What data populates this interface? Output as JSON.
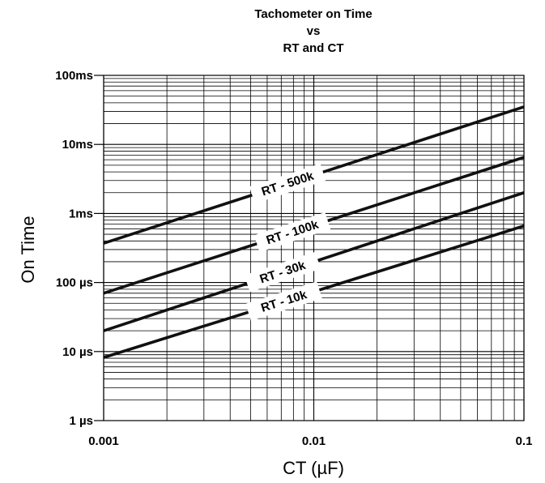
{
  "chart_data": {
    "type": "line",
    "title": [
      "Tachometer on Time",
      "vs",
      "RT and CT"
    ],
    "xlabel": "CT (µF)",
    "ylabel": "On Time",
    "x_scale": "log",
    "y_scale": "log",
    "xlim": [
      0.001,
      0.1
    ],
    "ylim": [
      1e-06,
      0.1
    ],
    "x_ticks": [
      {
        "value": 0.001,
        "label": "0.001"
      },
      {
        "value": 0.01,
        "label": "0.01"
      },
      {
        "value": 0.1,
        "label": "0.1"
      }
    ],
    "y_ticks": [
      {
        "value": 0.1,
        "label": "100ms"
      },
      {
        "value": 0.01,
        "label": "10ms"
      },
      {
        "value": 0.001,
        "label": "1ms"
      },
      {
        "value": 0.0001,
        "label": "100 µs"
      },
      {
        "value": 1e-05,
        "label": "10 µs"
      },
      {
        "value": 1e-06,
        "label": "1 µs"
      }
    ],
    "grid": true,
    "series": [
      {
        "name": "RT - 500k",
        "x": [
          0.001,
          0.1
        ],
        "y": [
          0.00037,
          0.035
        ]
      },
      {
        "name": "RT - 100k",
        "x": [
          0.001,
          0.1
        ],
        "y": [
          7e-05,
          0.0065
        ]
      },
      {
        "name": "RT - 30k",
        "x": [
          0.001,
          0.1
        ],
        "y": [
          2e-05,
          0.002
        ]
      },
      {
        "name": "RT - 10k",
        "x": [
          0.001,
          0.1
        ],
        "y": [
          8.2e-06,
          0.00066
        ]
      }
    ]
  }
}
